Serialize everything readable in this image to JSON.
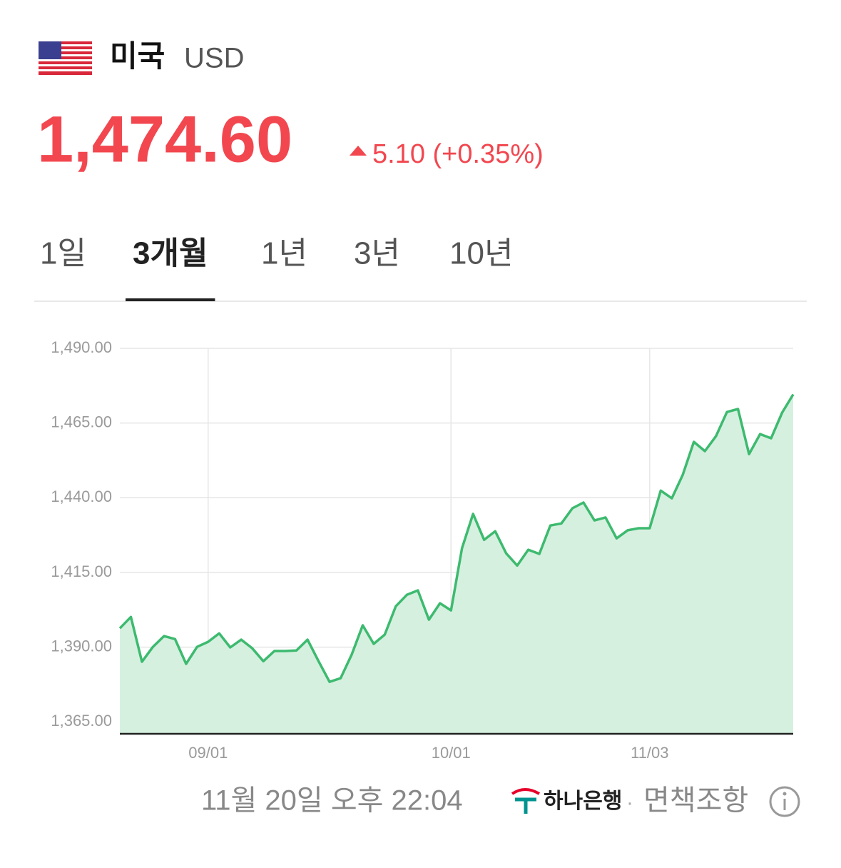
{
  "header": {
    "country": "미국",
    "currency": "USD",
    "price": "1,474.60",
    "change": "5.10 (+0.35%)"
  },
  "tabs": [
    "1일",
    "3개월",
    "1년",
    "3년",
    "10년"
  ],
  "active_tab": 1,
  "footer": {
    "timestamp": "11월 20일 오후 22:04",
    "bank": "하나은행",
    "separator": "·",
    "disclaimer": "면책조항"
  },
  "chart_data": {
    "type": "area",
    "color": "#3dba6f",
    "fill": "#d6f0e0",
    "grid": true,
    "categories": [
      null,
      null,
      null,
      null,
      null,
      null,
      null,
      null,
      "09/01",
      null,
      null,
      null,
      null,
      null,
      null,
      null,
      null,
      null,
      null,
      null,
      null,
      null,
      null,
      null,
      null,
      null,
      null,
      null,
      null,
      null,
      "10/01",
      null,
      null,
      null,
      null,
      null,
      null,
      null,
      null,
      null,
      null,
      null,
      null,
      null,
      null,
      null,
      null,
      null,
      "11/03",
      null,
      null,
      null,
      null,
      null,
      null,
      null,
      null,
      null,
      null,
      null,
      null,
      null
    ],
    "values": [
      1396.3,
      1400.1,
      1385.1,
      1390.1,
      1393.7,
      1392.7,
      1384.4,
      1390.1,
      1391.8,
      1394.6,
      1389.9,
      1392.5,
      1389.6,
      1385.3,
      1388.7,
      1388.7,
      1388.9,
      1392.5,
      1385.3,
      1378.4,
      1379.6,
      1387.5,
      1397.3,
      1391.1,
      1394.2,
      1403.7,
      1407.5,
      1409.0,
      1399.2,
      1404.7,
      1402.3,
      1423.1,
      1434.6,
      1425.9,
      1428.8,
      1421.4,
      1417.3,
      1422.6,
      1421.2,
      1430.7,
      1431.4,
      1436.5,
      1438.4,
      1432.4,
      1433.4,
      1426.4,
      1429.1,
      1429.8,
      1429.8,
      1442.4,
      1439.8,
      1447.7,
      1458.7,
      1455.6,
      1460.6,
      1468.7,
      1469.7,
      1454.6,
      1461.3,
      1459.9,
      1468.5,
      1474.6
    ],
    "ylim": [
      1361,
      1490
    ],
    "yticks": [
      {
        "value": 1490,
        "label": "1,490.00"
      },
      {
        "value": 1465,
        "label": "1,465.00"
      },
      {
        "value": 1440,
        "label": "1,440.00"
      },
      {
        "value": 1415,
        "label": "1,415.00"
      },
      {
        "value": 1390,
        "label": "1,390.00"
      },
      {
        "value": 1365,
        "label": "1,365.00"
      }
    ]
  }
}
